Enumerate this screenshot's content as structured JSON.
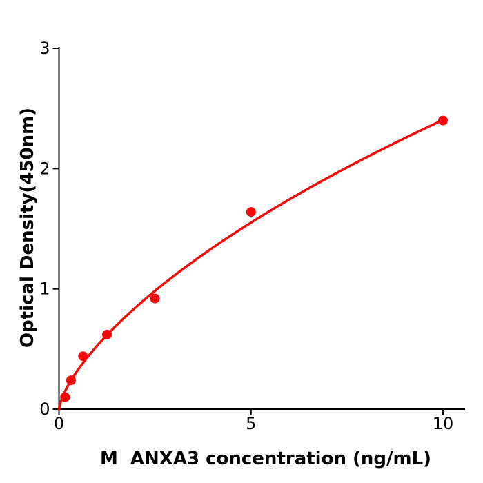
{
  "figure": {
    "background_color": "#ffffff"
  },
  "chart_data": {
    "type": "scatter",
    "title": "",
    "xlabel": "M  ANXA3 concentration (ng/mL)",
    "ylabel": "Optical Density(450nm)",
    "x": [
      0.156,
      0.3125,
      0.625,
      1.25,
      2.5,
      5,
      10
    ],
    "y": [
      0.1,
      0.24,
      0.44,
      0.62,
      0.92,
      1.64,
      2.4
    ],
    "x_ticks": [
      0,
      5,
      10
    ],
    "y_ticks": [
      0,
      1,
      2,
      3
    ],
    "xlim": [
      0,
      10.57
    ],
    "ylim": [
      0,
      3.01
    ],
    "grid": false,
    "legend_position": "none",
    "marker_color": "#f40808",
    "line_color": "#f40808",
    "axis_color": "#000000",
    "fit_curve": {
      "model": "y = a*x^b / (K + x^b)",
      "a": 20.3,
      "b": 0.7,
      "K": 37.3,
      "x_range": [
        0,
        10
      ]
    }
  }
}
